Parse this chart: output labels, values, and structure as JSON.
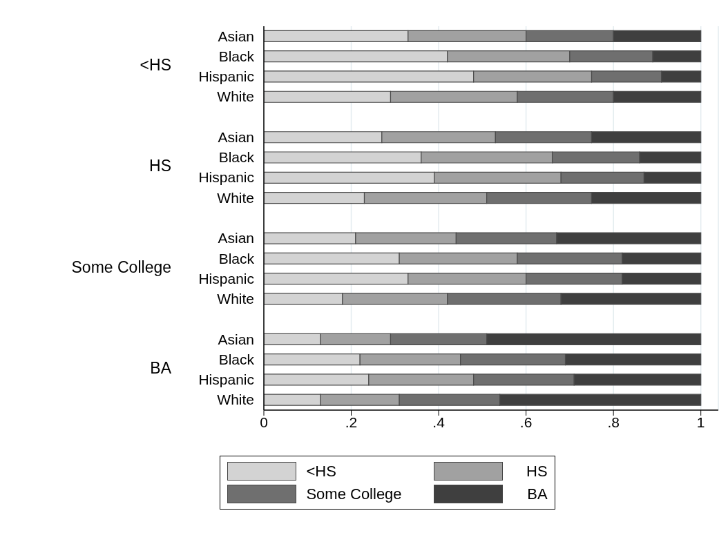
{
  "chart_data": {
    "type": "bar",
    "orientation": "horizontal",
    "stacked": true,
    "categories": [
      "Asian",
      "Black",
      "Hispanic",
      "White",
      "Asian",
      "Black",
      "Hispanic",
      "White",
      "Asian",
      "Black",
      "Hispanic",
      "White",
      "Asian",
      "Black",
      "Hispanic",
      "White"
    ],
    "annotations": [
      "<HS",
      "HS",
      "Some College",
      "BA"
    ],
    "series": [
      {
        "name": "<HS",
        "color": "#d3d3d3",
        "values": [
          0.33,
          0.42,
          0.48,
          0.29,
          0.27,
          0.36,
          0.39,
          0.23,
          0.21,
          0.31,
          0.33,
          0.18,
          0.13,
          0.22,
          0.24,
          0.13
        ]
      },
      {
        "name": "HS",
        "color": "#a1a1a1",
        "values": [
          0.27,
          0.28,
          0.27,
          0.29,
          0.26,
          0.3,
          0.29,
          0.28,
          0.23,
          0.27,
          0.27,
          0.24,
          0.16,
          0.23,
          0.24,
          0.18
        ]
      },
      {
        "name": "Some College",
        "color": "#6f6f6f",
        "values": [
          0.2,
          0.19,
          0.16,
          0.22,
          0.22,
          0.2,
          0.19,
          0.24,
          0.23,
          0.24,
          0.22,
          0.26,
          0.22,
          0.24,
          0.23,
          0.23
        ]
      },
      {
        "name": "BA",
        "color": "#3f3f3f",
        "values": [
          0.2,
          0.11,
          0.09,
          0.2,
          0.25,
          0.14,
          0.13,
          0.25,
          0.33,
          0.18,
          0.18,
          0.32,
          0.49,
          0.31,
          0.29,
          0.46
        ]
      }
    ],
    "xlim": [
      0,
      1.04
    ],
    "xticks": [
      0,
      {
        "value": 0.2,
        "label": ".2"
      },
      {
        "value": 0.4,
        "label": ".4"
      },
      {
        "value": 0.6,
        "label": ".6"
      },
      {
        "value": 0.8,
        "label": ".8"
      },
      1
    ],
    "grid": "x",
    "legend": "bottom"
  }
}
